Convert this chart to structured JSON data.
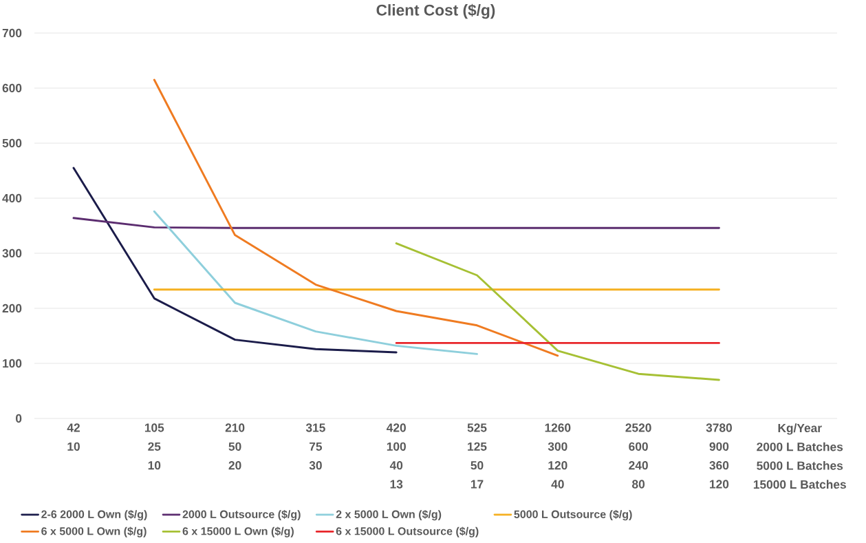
{
  "chart_data": {
    "type": "line",
    "title": "Client Cost ($/g)",
    "categories": [
      "42\n10",
      "105\n25\n10",
      "210\n50\n20",
      "315\n75\n30",
      "420\n100\n40\n13",
      "525\n125\n50\n17",
      "1260\n300\n120\n40",
      "2520\n600\n240\n80",
      "3780\n900\n360\n120",
      "Kg/Year\n2000 L Batches\n5000 L Batches\n15000 L Batches"
    ],
    "series": [
      {
        "name": "2-6 2000 L Own ($/g)",
        "color": "#1b1c4a",
        "values": [
          455,
          218,
          143,
          126,
          120,
          null,
          null,
          null,
          null,
          null
        ]
      },
      {
        "name": "2000 L Outsource ($/g)",
        "color": "#5b2c6f",
        "values": [
          364,
          347,
          346,
          346,
          346,
          346,
          346,
          346,
          346,
          null
        ]
      },
      {
        "name": "2 x 5000 L Own ($/g)",
        "color": "#8ecfdc",
        "values": [
          null,
          376,
          210,
          158,
          132,
          117,
          null,
          null,
          null,
          null
        ]
      },
      {
        "name": "5000 L Outsource ($/g)",
        "color": "#f5b021",
        "values": [
          null,
          234,
          234,
          234,
          234,
          234,
          234,
          234,
          234,
          null
        ]
      },
      {
        "name": "6 x 5000 L Own ($/g)",
        "color": "#ef7b21",
        "values": [
          null,
          615,
          333,
          243,
          195,
          169,
          114,
          null,
          null,
          null
        ]
      },
      {
        "name": "6 x 15000 L Own ($/g)",
        "color": "#a6c034",
        "values": [
          null,
          null,
          null,
          null,
          318,
          260,
          123,
          81,
          70,
          null
        ]
      },
      {
        "name": "6 x 15000 L Outsource ($/g)",
        "color": "#e8262a",
        "values": [
          null,
          null,
          null,
          null,
          137,
          137,
          137,
          137,
          137,
          null
        ]
      }
    ],
    "ylim": [
      0,
      700
    ],
    "yticks": [
      0,
      100,
      200,
      300,
      400,
      500,
      600,
      700
    ],
    "grid": "y",
    "legend": "bottom"
  }
}
